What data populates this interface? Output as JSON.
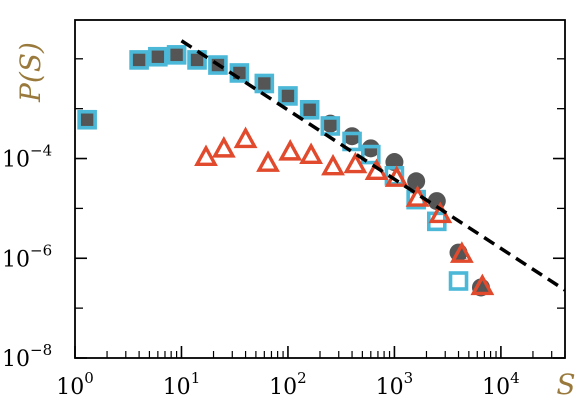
{
  "chart_data": {
    "type": "scatter",
    "title": "",
    "xlabel": "S",
    "ylabel": "P(S)",
    "label_color": "#9a7a3c",
    "xscale": "log",
    "yscale": "log",
    "xlim": [
      1,
      40000
    ],
    "ylim": [
      1e-08,
      0.06
    ],
    "grid": false,
    "legend": "none",
    "x_ticks": [
      {
        "value": 1,
        "base": "10",
        "exp": "0"
      },
      {
        "value": 10,
        "base": "10",
        "exp": "1"
      },
      {
        "value": 100,
        "base": "10",
        "exp": "2"
      },
      {
        "value": 1000,
        "base": "10",
        "exp": "3"
      },
      {
        "value": 10000,
        "base": "10",
        "exp": "4"
      }
    ],
    "y_ticks": [
      {
        "value": 1e-08,
        "base": "10",
        "exp": "−8"
      },
      {
        "value": 1e-06,
        "base": "10",
        "exp": "−6"
      },
      {
        "value": 0.0001,
        "base": "10",
        "exp": "−4"
      }
    ],
    "y_minor_ticks": [
      1e-07,
      1e-05,
      0.001,
      0.01
    ],
    "fit_line": {
      "style": "dashed",
      "color": "#000000",
      "x": [
        10,
        40000
      ],
      "y": [
        0.023,
        2.3e-07
      ]
    },
    "series": [
      {
        "marker": "filled-circle",
        "color": "#555555",
        "x": [
          1.3,
          4,
          6,
          9,
          14,
          22,
          35,
          60,
          100,
          160,
          250,
          400,
          600,
          1000,
          1600,
          2500,
          4000,
          6500
        ],
        "y": [
          0.0006,
          0.0095,
          0.011,
          0.012,
          0.0095,
          0.0075,
          0.0052,
          0.0032,
          0.0018,
          0.00095,
          0.0005,
          0.00028,
          0.00016,
          8.5e-05,
          3.5e-05,
          1.4e-05,
          1.3e-06,
          2.6e-07
        ]
      },
      {
        "marker": "open-square",
        "color": "#4bb8d8",
        "x": [
          1.3,
          4,
          6,
          9,
          14,
          22,
          35,
          60,
          100,
          160,
          250,
          400,
          600,
          1000,
          1600,
          2500,
          4000
        ],
        "y": [
          0.0006,
          0.0095,
          0.011,
          0.012,
          0.0095,
          0.0075,
          0.0052,
          0.0032,
          0.0018,
          0.00095,
          0.00045,
          0.00022,
          0.00012,
          4.5e-05,
          1.5e-05,
          5.5e-06,
          3.5e-07
        ]
      },
      {
        "marker": "open-triangle",
        "color": "#e14a2c",
        "x": [
          17,
          25,
          40,
          65,
          105,
          165,
          265,
          430,
          680,
          1050,
          1650,
          2700,
          4300,
          6700
        ],
        "y": [
          0.000105,
          0.000155,
          0.00024,
          8e-05,
          0.000135,
          0.000115,
          6.8e-05,
          7.5e-05,
          5.5e-05,
          4e-05,
          1.6e-05,
          7.5e-06,
          1.2e-06,
          2.7e-07
        ]
      },
      {
        "marker": "filled-triangle",
        "color": "#555555",
        "x": [
          4300,
          6700
        ],
        "y": [
          1.2e-06,
          2.7e-07
        ]
      }
    ]
  }
}
